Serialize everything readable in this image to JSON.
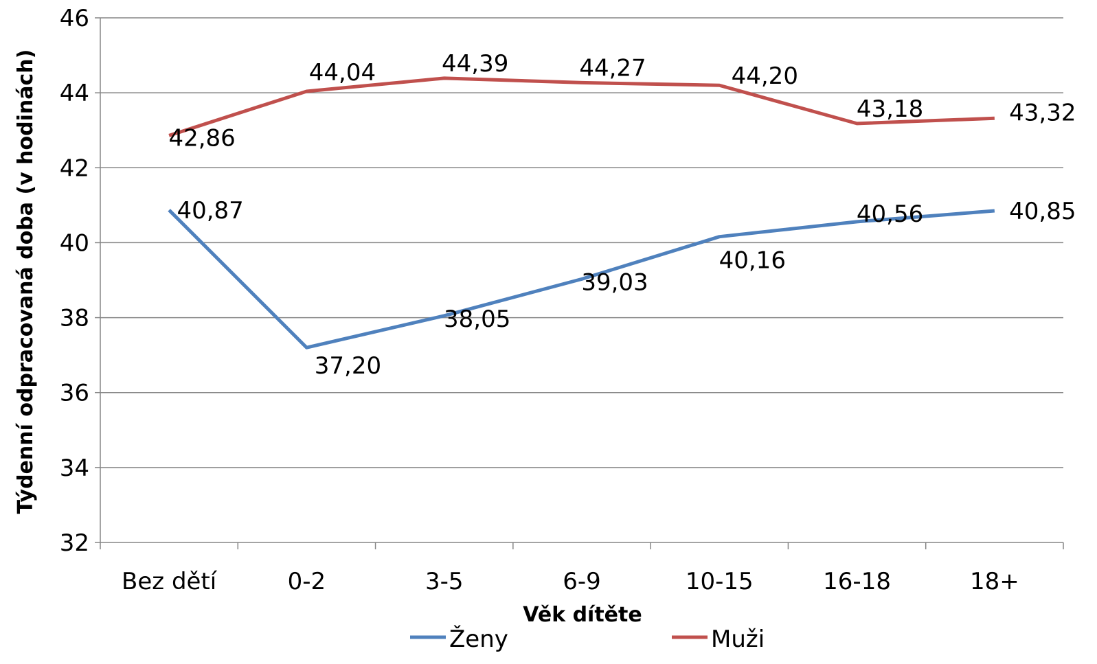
{
  "chart_data": {
    "type": "line",
    "categories": [
      "Bez dětí",
      "0-2",
      "3-5",
      "6-9",
      "10-15",
      "16-18",
      "18+"
    ],
    "series": [
      {
        "name": "Ženy",
        "values": [
          40.87,
          37.2,
          38.05,
          39.03,
          40.16,
          40.56,
          40.85
        ],
        "labels": [
          "40,87",
          "37,20",
          "38,05",
          "39,03",
          "40,16",
          "40,56",
          "40,85"
        ]
      },
      {
        "name": "Muži",
        "values": [
          42.86,
          44.04,
          44.39,
          44.27,
          44.2,
          43.18,
          43.32
        ],
        "labels": [
          "42,86",
          "44,04",
          "44,39",
          "44,27",
          "44,20",
          "43,18",
          "43,32"
        ]
      }
    ],
    "xlabel": "Věk dítěte",
    "ylabel": "Týdenní odpracovaná doba (v hodinách)",
    "ylim": [
      32,
      46
    ],
    "yticks": [
      32,
      34,
      36,
      38,
      40,
      42,
      44,
      46
    ],
    "grid": true,
    "legend_position": "bottom",
    "colors": {
      "Ženy": "#4f81bd",
      "Muži": "#c0504d",
      "grid": "#868686",
      "axis": "#868686"
    }
  }
}
